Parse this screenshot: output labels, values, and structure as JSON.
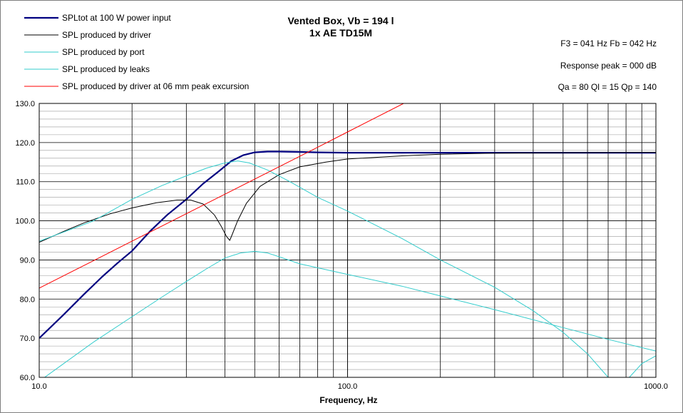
{
  "chart_data": {
    "type": "line",
    "title_line1": "Vented Box, Vb = 194 l",
    "title_line2": "1x AE TD15M",
    "xlabel": "Frequency, Hz",
    "ylabel": "",
    "x_scale": "log",
    "xlim": [
      10,
      1000
    ],
    "ylim": [
      60,
      130
    ],
    "x_tick_labels": [
      {
        "value": 10,
        "label": "10.0"
      },
      {
        "value": 100,
        "label": "100.0"
      },
      {
        "value": 1000,
        "label": "1000.0"
      }
    ],
    "y_ticks": [
      60,
      70,
      80,
      90,
      100,
      110,
      120,
      130
    ],
    "y_tick_labels": [
      "60.0",
      "70.0",
      "80.0",
      "90.0",
      "100.0",
      "110.0",
      "120.0",
      "130.0"
    ],
    "grid": true,
    "legend_position": "top-left",
    "info": [
      "F3 = 041  Hz  Fb = 042  Hz",
      "Response peak = 000  dB",
      "Qa = 80   Ql = 15   Qp = 140"
    ],
    "series": [
      {
        "name": "SPLtot at 100 W power input",
        "color": "#000080",
        "width": 2.2,
        "points": [
          [
            10,
            70
          ],
          [
            12,
            76
          ],
          [
            14,
            81.3
          ],
          [
            16,
            85.7
          ],
          [
            18,
            89.3
          ],
          [
            20,
            92.3
          ],
          [
            23,
            97.5
          ],
          [
            26,
            101.5
          ],
          [
            30,
            105.5
          ],
          [
            34,
            109.5
          ],
          [
            38,
            112.5
          ],
          [
            42,
            115.3
          ],
          [
            46,
            116.8
          ],
          [
            50,
            117.5
          ],
          [
            55,
            117.7
          ],
          [
            60,
            117.7
          ],
          [
            70,
            117.6
          ],
          [
            80,
            117.5
          ],
          [
            100,
            117.4
          ],
          [
            150,
            117.4
          ],
          [
            200,
            117.4
          ],
          [
            500,
            117.4
          ],
          [
            1000,
            117.4
          ]
        ]
      },
      {
        "name": "SPL produced by driver",
        "color": "#000000",
        "width": 1,
        "points": [
          [
            10,
            94.5
          ],
          [
            12,
            97.3
          ],
          [
            14,
            99.5
          ],
          [
            17,
            101.8
          ],
          [
            20,
            103.3
          ],
          [
            24,
            104.6
          ],
          [
            28,
            105.3
          ],
          [
            31,
            105.3
          ],
          [
            34,
            104.3
          ],
          [
            37,
            101.5
          ],
          [
            39,
            98.5
          ],
          [
            40.5,
            96
          ],
          [
            41.5,
            95
          ],
          [
            42.5,
            97
          ],
          [
            44,
            100
          ],
          [
            47,
            104.5
          ],
          [
            52,
            108.8
          ],
          [
            60,
            111.8
          ],
          [
            70,
            113.8
          ],
          [
            85,
            115
          ],
          [
            100,
            115.8
          ],
          [
            150,
            116.6
          ],
          [
            200,
            117
          ],
          [
            300,
            117.3
          ],
          [
            500,
            117.4
          ],
          [
            1000,
            117.5
          ]
        ]
      },
      {
        "name": "SPL produced by port",
        "color": "#33cccc",
        "width": 1,
        "points": [
          [
            10,
            94.8
          ],
          [
            15,
            100
          ],
          [
            20,
            105.5
          ],
          [
            25,
            109
          ],
          [
            30,
            111.5
          ],
          [
            35,
            113.5
          ],
          [
            40,
            114.8
          ],
          [
            44,
            115.3
          ],
          [
            48,
            114.8
          ],
          [
            55,
            113
          ],
          [
            65,
            110
          ],
          [
            80,
            106
          ],
          [
            100,
            102.5
          ],
          [
            150,
            95.5
          ],
          [
            200,
            90
          ],
          [
            300,
            83
          ],
          [
            400,
            77
          ],
          [
            500,
            71.5
          ],
          [
            600,
            66
          ],
          [
            700,
            60
          ],
          [
            760,
            58.5
          ],
          [
            820,
            60
          ],
          [
            900,
            63.5
          ],
          [
            1000,
            65.5
          ]
        ]
      },
      {
        "name": "SPL produced by leaks",
        "color": "#33cccc",
        "width": 1,
        "points": [
          [
            10,
            59
          ],
          [
            12,
            63.5
          ],
          [
            15,
            69
          ],
          [
            20,
            75.5
          ],
          [
            25,
            80.5
          ],
          [
            30,
            84.5
          ],
          [
            35,
            87.8
          ],
          [
            40,
            90.5
          ],
          [
            45,
            91.8
          ],
          [
            50,
            92.2
          ],
          [
            55,
            91.8
          ],
          [
            60,
            90.8
          ],
          [
            70,
            89
          ],
          [
            100,
            86.3
          ],
          [
            150,
            83.3
          ],
          [
            200,
            80.8
          ],
          [
            300,
            77.3
          ],
          [
            500,
            72.7
          ],
          [
            700,
            69.7
          ],
          [
            1000,
            66.7
          ]
        ]
      },
      {
        "name": "SPL produced by driver at 06 mm peak excursion",
        "color": "#ff0000",
        "width": 1,
        "points": [
          [
            10,
            82.8
          ],
          [
            20,
            94.8
          ],
          [
            40,
            106.8
          ],
          [
            80,
            118.8
          ],
          [
            100,
            122.7
          ],
          [
            152,
            130
          ]
        ]
      }
    ]
  }
}
